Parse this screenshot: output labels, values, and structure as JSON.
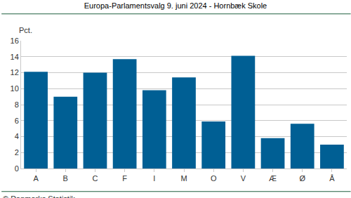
{
  "chart_data": {
    "type": "bar",
    "title": "Europa-Parlamentsvalg 9. juni 2024 - Hornbæk Skole",
    "y_label": "Pct.",
    "source": "© Danmarks Statistik",
    "categories": [
      "A",
      "B",
      "C",
      "F",
      "I",
      "M",
      "O",
      "V",
      "Æ",
      "Ø",
      "Å"
    ],
    "values": [
      12.1,
      9.0,
      12.0,
      13.7,
      9.8,
      11.4,
      5.9,
      14.1,
      3.8,
      5.6,
      3.0
    ],
    "color": "#005f94",
    "ylim": [
      0,
      16
    ],
    "yticks": [
      0,
      2,
      4,
      6,
      8,
      10,
      12,
      14,
      16
    ],
    "grid": true
  }
}
